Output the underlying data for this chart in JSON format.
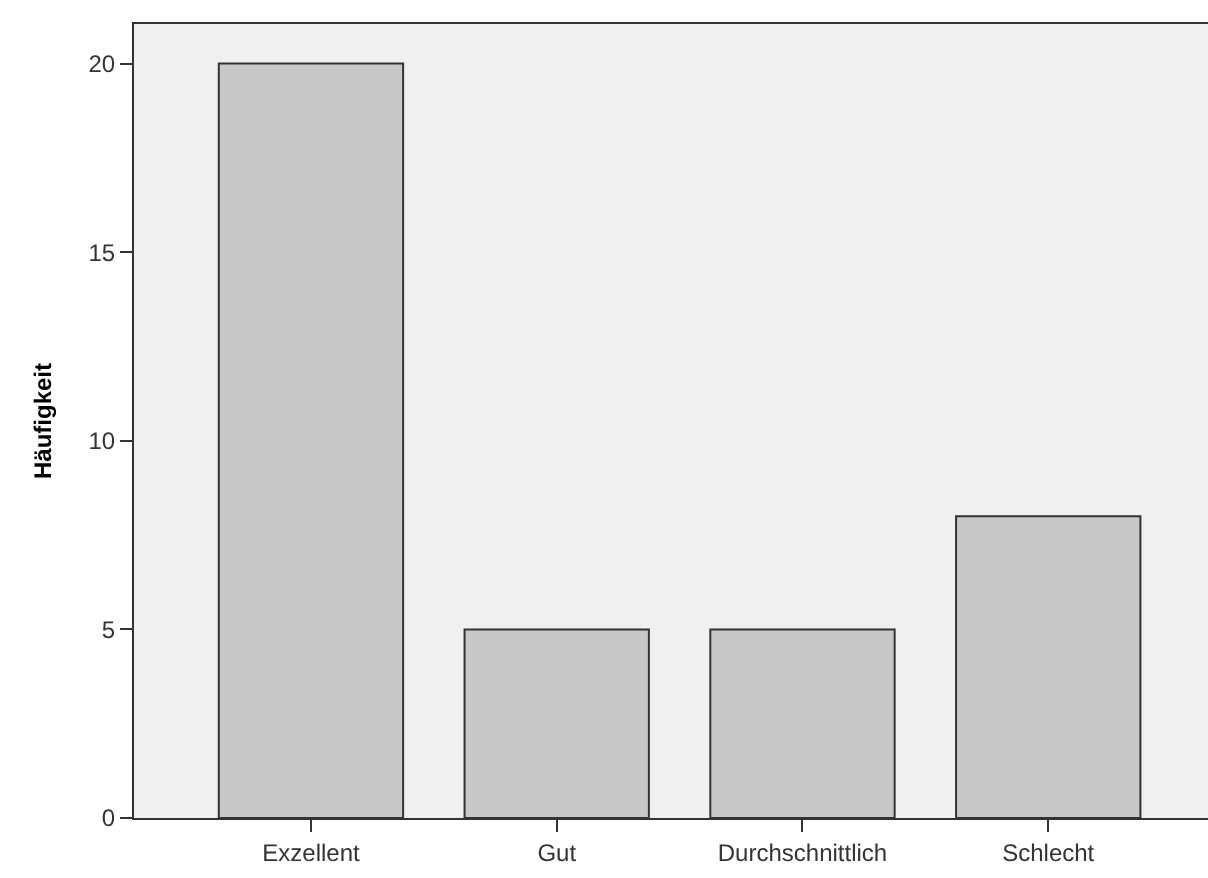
{
  "chart_data": {
    "type": "bar",
    "ylabel": "Häufigkeit",
    "categories": [
      "Exzellent",
      "Gut",
      "Durchschnittlich",
      "Schlecht"
    ],
    "values": [
      20,
      5,
      5,
      8
    ],
    "color": "#c8c8c8",
    "ylim": [
      0,
      21.05
    ],
    "yticks": [
      0,
      5,
      10,
      15,
      20
    ],
    "grid": false
  }
}
